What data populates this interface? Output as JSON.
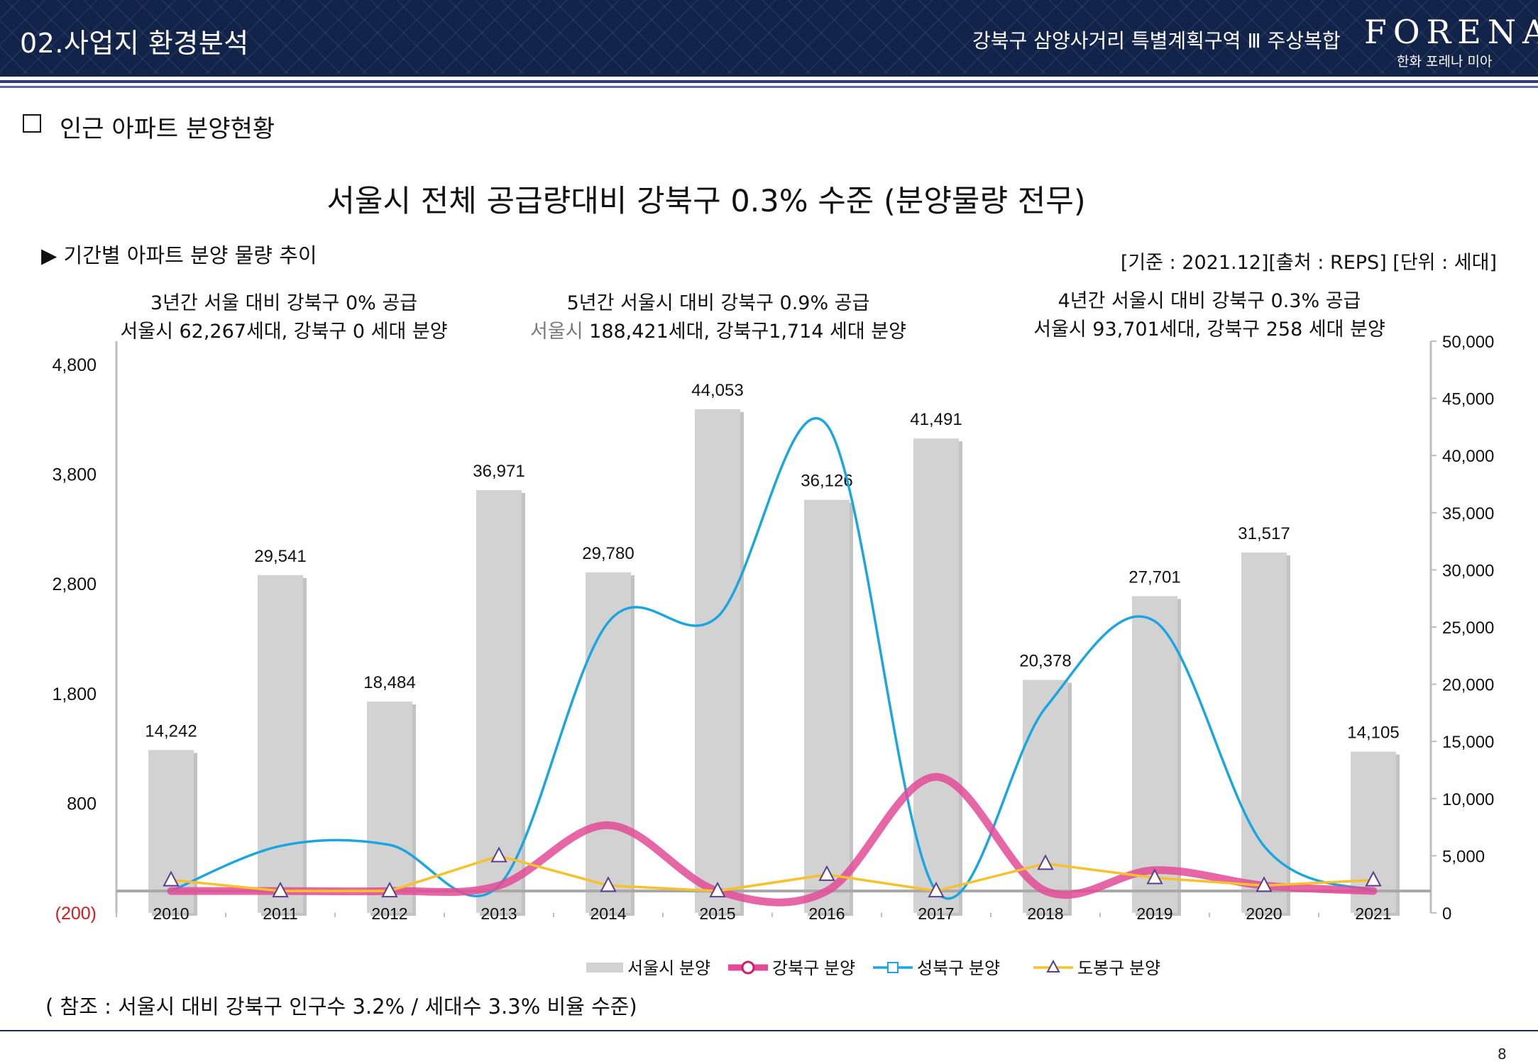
{
  "header": {
    "section_title": "02.사업지 환경분석",
    "project_name": "강북구 삼양사거리 특별계획구역 Ⅲ 주상복합",
    "brand": "FORENA",
    "brand_sub": "한화 포레나 미아"
  },
  "sub_heading": "인근 아파트 분양현황",
  "chart_subtitle": "▶ 기간별 아파트 분양 물량 추이",
  "source_note": "[기준 : 2021.12][출처 : REPS] [단위 : 세대]",
  "annotations": [
    {
      "line1": "3년간 서울 대비 강북구  0% 공급",
      "line2": "서울시 62,267세대, 강북구 0 세대 분양"
    },
    {
      "line1": "5년간 서울시 대비 강북구  0.9% 공급",
      "line2_muted": "서울시",
      "line2_rest": " 188,421세대, 강북구1,714 세대 분양"
    },
    {
      "line1": "4년간 서울시 대비 강북구  0.3% 공급",
      "line2": "서울시 93,701세대, 강북구 258 세대 분양"
    }
  ],
  "footnote": "( 참조 : 서울시 대비 강북구 인구수 3.2% / 세대수 3.3% 비율 수준)",
  "page_number": "8",
  "chart_data": {
    "type": "bar",
    "title": "서울시 전체 공급량대비 강북구 0.3% 수준 (분양물량 전무)",
    "categories": [
      "2010",
      "2011",
      "2012",
      "2013",
      "2014",
      "2015",
      "2016",
      "2017",
      "2018",
      "2019",
      "2020",
      "2021"
    ],
    "left_axis": {
      "ticks": [
        4800,
        3800,
        2800,
        1800,
        800,
        -200
      ],
      "tick_labels": [
        "4,800",
        "3,800",
        "2,800",
        "1,800",
        "800",
        "(200)"
      ],
      "ylim": [
        -200,
        4800
      ]
    },
    "right_axis": {
      "ticks": [
        50000,
        45000,
        40000,
        35000,
        30000,
        25000,
        20000,
        15000,
        10000,
        5000,
        0
      ],
      "tick_labels": [
        "50,000",
        "45,000",
        "40,000",
        "35,000",
        "30,000",
        "25,000",
        "20,000",
        "15,000",
        "10,000",
        "5,000",
        "0"
      ],
      "ylim": [
        0,
        50000
      ]
    },
    "series": [
      {
        "name": "서울시 분양",
        "kind": "bar",
        "axis": "right",
        "color": "#d2d2d2",
        "values": [
          14242,
          29541,
          18484,
          36971,
          29780,
          44053,
          36126,
          41491,
          20378,
          27701,
          31517,
          14105
        ],
        "labels": [
          "14,242",
          "29,541",
          "18,484",
          "36,971",
          "29,780",
          "44,053",
          "36,126",
          "41,491",
          "20,378",
          "27,701",
          "31,517",
          "14,105"
        ]
      },
      {
        "name": "강북구 분양",
        "kind": "line",
        "axis": "left",
        "color": "#e34b96",
        "values": [
          0,
          0,
          0,
          50,
          600,
          0,
          0,
          1040,
          0,
          190,
          50,
          0
        ]
      },
      {
        "name": "성북구 분양",
        "kind": "line",
        "axis": "left",
        "color": "#1ba6df",
        "values": [
          0,
          410,
          420,
          50,
          2450,
          2500,
          4250,
          0,
          1670,
          2460,
          410,
          0
        ]
      },
      {
        "name": "도봉구 분양",
        "kind": "line",
        "axis": "left",
        "color": "#f5c22b",
        "values": [
          100,
          0,
          0,
          320,
          50,
          0,
          150,
          0,
          250,
          120,
          50,
          100
        ]
      }
    ],
    "legend_position": "bottom",
    "grid": false
  }
}
